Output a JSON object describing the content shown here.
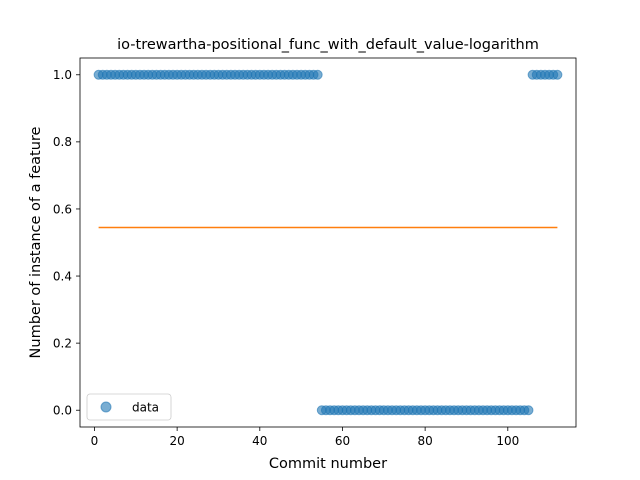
{
  "chart_data": {
    "type": "scatter",
    "title": "io-trewartha-positional_func_with_default_value-logarithm",
    "xlabel": "Commit number",
    "ylabel": "Number of instance of a feature",
    "xlim": [
      -3.5,
      116.5
    ],
    "ylim": [
      -0.05,
      1.05
    ],
    "xticks": [
      0,
      20,
      40,
      60,
      80,
      100
    ],
    "xtick_labels": [
      "0",
      "20",
      "40",
      "60",
      "80",
      "100"
    ],
    "yticks": [
      0.0,
      0.2,
      0.4,
      0.6,
      0.8,
      1.0
    ],
    "ytick_labels": [
      "0.0",
      "0.2",
      "0.4",
      "0.6",
      "0.8",
      "1.0"
    ],
    "grid": false,
    "legend": {
      "position": "lower-left",
      "entries": [
        "data"
      ]
    },
    "series": [
      {
        "name": "data",
        "kind": "scatter",
        "color": "#1f77b4",
        "segments": [
          {
            "x_start": 1,
            "x_end": 54,
            "y": 1.0
          },
          {
            "x_start": 55,
            "x_end": 105,
            "y": 0.0
          },
          {
            "x_start": 106,
            "x_end": 112,
            "y": 1.0
          }
        ]
      },
      {
        "name": "",
        "kind": "line",
        "color": "#ff7f0e",
        "x": [
          1,
          112
        ],
        "y": [
          0.5446,
          0.5446
        ]
      }
    ]
  }
}
